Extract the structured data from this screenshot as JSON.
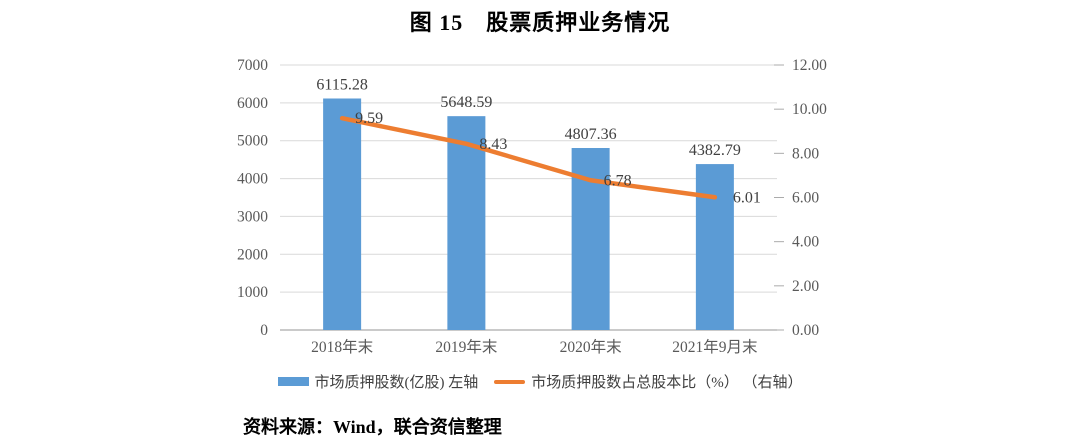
{
  "title": "图 15　股票质押业务情况",
  "source_note": "资料来源：Wind，联合资信整理",
  "chart_data": {
    "type": "bar",
    "subtype": "combo-bar-line",
    "title": "图 15 股票质押业务情况",
    "categories": [
      "2018年末",
      "2019年末",
      "2020年末",
      "2021年9月末"
    ],
    "series": [
      {
        "name": "市场质押股数(亿股) 左轴",
        "type": "bar",
        "axis": "left",
        "color": "#5B9BD5",
        "values": [
          6115.28,
          5648.59,
          4807.36,
          4382.79
        ]
      },
      {
        "name": "市场质押股数占总股本比（%） （右轴）",
        "type": "line",
        "axis": "right",
        "color": "#ED7D31",
        "values": [
          9.59,
          8.43,
          6.78,
          6.01
        ]
      }
    ],
    "left_axis": {
      "min": 0,
      "max": 7000,
      "step": 1000
    },
    "right_axis": {
      "min": 0,
      "max": 12,
      "step": 2,
      "decimals": 2
    },
    "grid": true,
    "legend_position": "bottom",
    "colors": {
      "gridline": "#D9D9D9",
      "axis_line": "#ABABAB",
      "tick_text": "#595959",
      "data_label": "#404040"
    }
  }
}
